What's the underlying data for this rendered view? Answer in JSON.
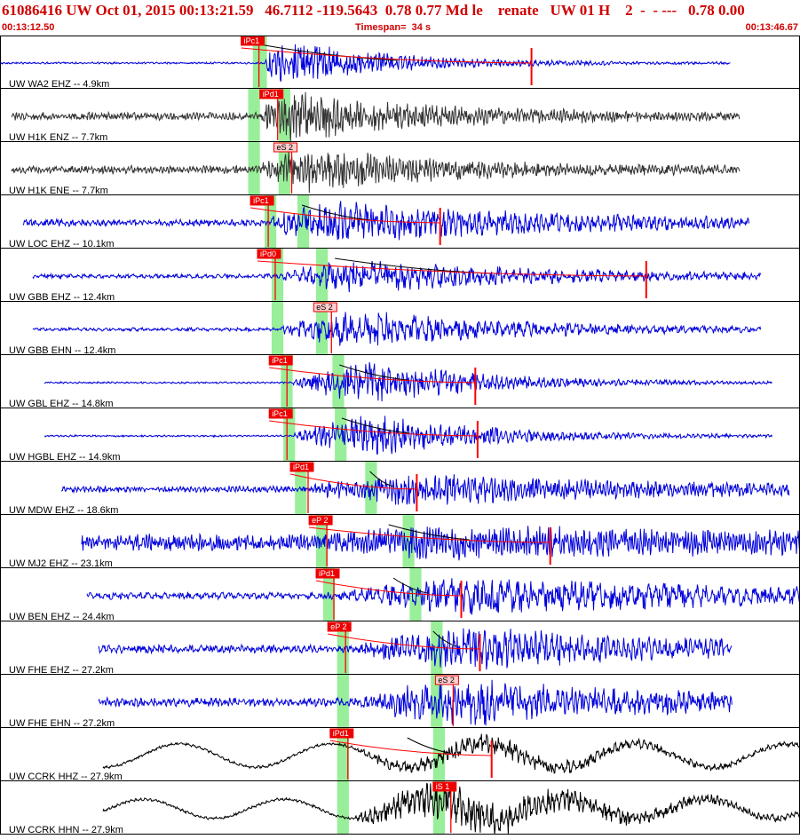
{
  "header": {
    "title": "61086416 UW Oct 01, 2015 00:13:21.59   46.7112 -119.5643  0.78 0.77 Md le    renate   UW 01 H    2  -  - ---   0.78 0.00",
    "start_time": "00:13:12.50",
    "timespan": "Timespan=  34 s",
    "end_time": "00:13:46.67"
  },
  "colors": {
    "header_text": "#d00000",
    "trace_blue": "#0000dd",
    "trace_gray": "#333333",
    "trace_black": "#000000",
    "pick_red": "#ff0000",
    "pick_box_red": "#ee0000",
    "pick_box_pink": "#ffcccc",
    "green_band": "#99ee99",
    "row_border": "#000000"
  },
  "chart_data": {
    "type": "line",
    "title": "61086416 UW Oct 01, 2015 00:13:21.59   46.7112 -119.5643  0.78 0.77 Md le    renate   UW 01 H    2  -  - ---   0.78 0.00",
    "x_unit": "seconds",
    "time_start": "00:13:12.50",
    "time_end": "00:13:46.67",
    "timespan_s": 34,
    "series": [
      {
        "label": "UW WA2 EHZ -- 4.9km",
        "color": "blue",
        "start": 0.0,
        "end": 31.2,
        "onset": 11.3,
        "peak_t": 12.0,
        "pre_amp": 0.03,
        "peak_amp": 0.95,
        "decay": 4.5,
        "noise": 0.02,
        "period": 0.18,
        "pick": {
          "label": "iPc1",
          "t": 10.3,
          "style": "red"
        },
        "s_t": 11.3,
        "coda_end": 22.7,
        "green": [
          10.8,
          11.4
        ]
      },
      {
        "label": "UW H1K ENZ -- 7.7km",
        "color": "gray",
        "start": 0.5,
        "end": 31.6,
        "onset": 11.1,
        "peak_t": 12.5,
        "pre_amp": 0.12,
        "peak_amp": 0.95,
        "decay": 6.0,
        "noise": 0.1,
        "period": 0.14,
        "pick": {
          "label": "iPd1",
          "t": 11.1,
          "style": "red"
        },
        "s_t": null,
        "coda_end": null,
        "green": [
          10.6,
          11.1,
          11.9,
          12.4
        ]
      },
      {
        "label": "UW H1K ENE -- 7.7km",
        "color": "gray",
        "start": 0.5,
        "end": 31.6,
        "onset": 11.1,
        "peak_t": 13.0,
        "pre_amp": 0.12,
        "peak_amp": 0.85,
        "decay": 6.0,
        "noise": 0.1,
        "period": 0.14,
        "pick": {
          "label": "eS 2",
          "t": 11.7,
          "style": "pink"
        },
        "s_t": 12.6,
        "coda_end": null,
        "green": [
          10.6,
          11.1,
          11.9,
          12.4
        ]
      },
      {
        "label": "UW LOC EHZ -- 10.1km",
        "color": "blue",
        "start": 1.0,
        "end": 32.0,
        "onset": 11.4,
        "peak_t": 14.5,
        "pre_amp": 0.1,
        "peak_amp": 0.8,
        "decay": 9.0,
        "noise": 0.12,
        "period": 0.22,
        "pick": {
          "label": "iPc1",
          "t": 10.7,
          "style": "red"
        },
        "s_t": 12.9,
        "coda_end": 18.8,
        "green": [
          11.3,
          11.8,
          12.7,
          13.2
        ]
      },
      {
        "label": "UW GBB EHZ -- 12.4km",
        "color": "blue",
        "start": 1.4,
        "end": 32.5,
        "onset": 12.0,
        "peak_t": 15.0,
        "pre_amp": 0.06,
        "peak_amp": 0.65,
        "decay": 8.0,
        "noise": 0.08,
        "period": 0.3,
        "pick": {
          "label": "iPd0",
          "t": 11.0,
          "style": "red"
        },
        "s_t": 14.3,
        "coda_end": 27.6,
        "green": [
          11.6,
          12.1,
          13.5,
          14.0
        ]
      },
      {
        "label": "UW GBB EHN -- 12.4km",
        "color": "blue",
        "start": 1.4,
        "end": 32.5,
        "onset": 12.0,
        "peak_t": 15.0,
        "pre_amp": 0.05,
        "peak_amp": 0.75,
        "decay": 7.0,
        "noise": 0.05,
        "period": 0.3,
        "pick": {
          "label": "eS 2",
          "t": 13.4,
          "style": "pink"
        },
        "s_t": 14.3,
        "coda_end": null,
        "green": [
          11.6,
          12.1,
          13.5,
          14.0
        ]
      },
      {
        "label": "UW GBL EHZ -- 14.8km",
        "color": "blue",
        "start": 1.9,
        "end": 33.0,
        "onset": 12.5,
        "peak_t": 16.0,
        "pre_amp": 0.03,
        "peak_amp": 0.8,
        "decay": 5.0,
        "noise": 0.02,
        "period": 0.2,
        "pick": {
          "label": "iPc1",
          "t": 11.5,
          "style": "red"
        },
        "s_t": 14.5,
        "coda_end": 20.3,
        "green": [
          12.0,
          12.5,
          14.2,
          14.7
        ]
      },
      {
        "label": "UW HGBL EHZ -- 14.9km",
        "color": "blue",
        "start": 1.9,
        "end": 33.0,
        "onset": 12.5,
        "peak_t": 16.0,
        "pre_amp": 0.03,
        "peak_amp": 0.8,
        "decay": 5.0,
        "noise": 0.02,
        "period": 0.2,
        "pick": {
          "label": "iPc1",
          "t": 11.5,
          "style": "red"
        },
        "s_t": 14.6,
        "coda_end": 20.4,
        "green": [
          12.1,
          12.6,
          14.3,
          14.8
        ]
      },
      {
        "label": "UW MDW EHZ -- 18.6km",
        "color": "blue",
        "start": 2.6,
        "end": 33.7,
        "onset": 13.3,
        "peak_t": 17.5,
        "pre_amp": 0.06,
        "peak_amp": 0.6,
        "decay": 12.0,
        "noise": 0.18,
        "period": 0.16,
        "pick": {
          "label": "iPd1",
          "t": 12.4,
          "style": "red"
        },
        "s_t": 15.8,
        "coda_end": 17.8,
        "green": [
          12.6,
          13.1,
          15.6,
          16.1
        ]
      },
      {
        "label": "UW MJ2 EHZ -- 23.1km",
        "color": "blue",
        "start": 3.5,
        "end": 34.6,
        "onset": 14.2,
        "peak_t": 19.5,
        "pre_amp": 0.22,
        "peak_amp": 0.6,
        "decay": 14.0,
        "noise": 0.35,
        "period": 0.12,
        "pick": {
          "label": "eP 2",
          "t": 13.2,
          "style": "red"
        },
        "s_t": 16.6,
        "coda_end": 23.5,
        "green": [
          13.5,
          14.0,
          17.2,
          17.7
        ]
      },
      {
        "label": "UW BEN EHZ -- 24.4km",
        "color": "blue",
        "start": 3.7,
        "end": 34.9,
        "onset": 14.5,
        "peak_t": 20.5,
        "pre_amp": 0.05,
        "peak_amp": 0.65,
        "decay": 14.0,
        "noise": 0.3,
        "period": 0.35,
        "pick": {
          "label": "iPd1",
          "t": 13.5,
          "style": "red"
        },
        "s_t": 16.8,
        "coda_end": 19.7,
        "green": [
          13.8,
          14.3,
          17.5,
          18.0
        ]
      },
      {
        "label": "UW FHE EHZ -- 27.2km",
        "color": "blue",
        "start": 4.2,
        "end": 31.3,
        "onset": 15.3,
        "peak_t": 20.5,
        "pre_amp": 0.1,
        "peak_amp": 0.8,
        "decay": 9.0,
        "noise": 0.18,
        "period": 0.22,
        "pick": {
          "label": "eP 2",
          "t": 14.0,
          "style": "red"
        },
        "s_t": 18.5,
        "coda_end": 20.5,
        "green": [
          14.4,
          14.9,
          18.4,
          18.9
        ]
      },
      {
        "label": "UW FHE EHN -- 27.2km",
        "color": "blue",
        "start": 4.2,
        "end": 31.3,
        "onset": 15.3,
        "peak_t": 20.0,
        "pre_amp": 0.1,
        "peak_amp": 0.85,
        "decay": 9.0,
        "noise": 0.22,
        "period": 0.2,
        "pick": {
          "label": "eS 2",
          "t": 18.6,
          "style": "pink"
        },
        "s_t": 19.5,
        "coda_end": null,
        "green": [
          14.4,
          14.9,
          18.4,
          18.9
        ]
      },
      {
        "label": "UW CCRK HHZ -- 27.9km",
        "color": "black",
        "start": 4.4,
        "end": 35.5,
        "onset": 15.1,
        "peak_t": 21.0,
        "pre_amp": 0.04,
        "peak_amp": 0.4,
        "decay": 6.0,
        "noise": 0.05,
        "period": 0.25,
        "pick": {
          "label": "iPd1",
          "t": 14.1,
          "style": "red"
        },
        "s_t": 17.4,
        "coda_end": 21.0,
        "green": [
          14.4,
          14.9,
          18.5,
          19.0
        ],
        "swell_amp": 0.55,
        "swell_period": 6.5
      },
      {
        "label": "UW CCRK HHN -- 27.9km",
        "color": "black",
        "start": 4.4,
        "end": 35.5,
        "onset": 15.1,
        "peak_t": 19.8,
        "pre_amp": 0.04,
        "peak_amp": 0.85,
        "decay": 6.0,
        "noise": 0.05,
        "period": 0.2,
        "pick": {
          "label": "iS 1",
          "t": 18.5,
          "style": "red"
        },
        "s_t": 19.3,
        "coda_end": null,
        "green": [
          14.4,
          14.9,
          18.5,
          19.0
        ],
        "swell_amp": 0.45,
        "swell_period": 6.0
      }
    ]
  }
}
